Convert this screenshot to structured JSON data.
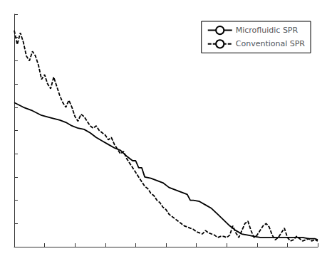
{
  "chart_data": {
    "type": "line",
    "series": [
      {
        "name": "Microfluidic SPR",
        "color": "#000000",
        "line_style": "solid",
        "x": [
          0,
          3,
          6,
          9,
          12,
          15,
          17,
          19,
          21,
          23,
          25,
          27,
          29,
          31,
          33,
          35,
          37,
          39,
          40,
          41,
          42,
          43,
          45,
          47,
          49,
          51,
          53,
          55,
          57,
          58,
          59,
          61,
          63,
          65,
          67,
          69,
          71,
          73,
          75,
          77,
          79,
          81,
          83,
          85,
          87,
          89,
          91,
          93,
          95,
          97,
          99,
          100
        ],
        "values": [
          0.62,
          0.6,
          0.585,
          0.565,
          0.555,
          0.545,
          0.535,
          0.52,
          0.51,
          0.505,
          0.49,
          0.47,
          0.455,
          0.44,
          0.425,
          0.415,
          0.39,
          0.37,
          0.37,
          0.34,
          0.34,
          0.3,
          0.295,
          0.285,
          0.275,
          0.255,
          0.245,
          0.235,
          0.225,
          0.2,
          0.2,
          0.195,
          0.18,
          0.165,
          0.14,
          0.115,
          0.09,
          0.07,
          0.055,
          0.05,
          0.045,
          0.04,
          0.04,
          0.04,
          0.04,
          0.04,
          0.04,
          0.04,
          0.04,
          0.035,
          0.035,
          0.03
        ]
      },
      {
        "name": "Conventional SPR",
        "color": "#000000",
        "line_style": "dashed",
        "x": [
          0,
          1,
          2,
          3,
          4,
          5,
          6,
          7,
          8,
          9,
          10,
          11,
          12,
          13,
          14,
          15,
          16,
          17,
          18,
          19,
          20,
          21,
          22,
          23,
          24,
          25,
          26,
          27,
          28,
          29,
          30,
          31,
          32,
          33,
          34,
          35,
          36,
          37,
          38,
          39,
          40,
          41,
          42,
          43,
          44,
          45,
          46,
          47,
          48,
          49,
          50,
          51,
          52,
          53,
          54,
          55,
          56,
          57,
          58,
          59,
          60,
          61,
          62,
          63,
          64,
          65,
          66,
          67,
          68,
          69,
          70,
          71,
          72,
          73,
          74,
          75,
          76,
          77,
          78,
          79,
          80,
          81,
          82,
          83,
          84,
          85,
          86,
          87,
          88,
          89,
          90,
          91,
          92,
          93,
          94,
          95,
          96,
          97,
          98,
          99,
          100
        ],
        "values": [
          0.93,
          0.87,
          0.92,
          0.88,
          0.82,
          0.8,
          0.84,
          0.82,
          0.78,
          0.72,
          0.74,
          0.7,
          0.68,
          0.73,
          0.69,
          0.65,
          0.62,
          0.6,
          0.63,
          0.6,
          0.56,
          0.54,
          0.57,
          0.56,
          0.54,
          0.52,
          0.51,
          0.52,
          0.5,
          0.49,
          0.48,
          0.46,
          0.47,
          0.44,
          0.42,
          0.4,
          0.41,
          0.38,
          0.36,
          0.34,
          0.32,
          0.3,
          0.28,
          0.26,
          0.25,
          0.23,
          0.22,
          0.2,
          0.19,
          0.17,
          0.16,
          0.14,
          0.13,
          0.12,
          0.11,
          0.1,
          0.09,
          0.085,
          0.08,
          0.075,
          0.065,
          0.06,
          0.055,
          0.07,
          0.06,
          0.055,
          0.05,
          0.04,
          0.045,
          0.045,
          0.04,
          0.05,
          0.09,
          0.06,
          0.04,
          0.07,
          0.1,
          0.11,
          0.07,
          0.04,
          0.05,
          0.07,
          0.09,
          0.1,
          0.085,
          0.05,
          0.03,
          0.04,
          0.06,
          0.08,
          0.04,
          0.025,
          0.03,
          0.045,
          0.035,
          0.025,
          0.03,
          0.035,
          0.025,
          0.03,
          0.025
        ]
      }
    ],
    "xlim": [
      0,
      100
    ],
    "ylim": [
      0,
      1.0
    ],
    "xticks": [
      0,
      10,
      20,
      30,
      40,
      50,
      60,
      70,
      80,
      90,
      100
    ],
    "yticks": [
      0,
      0.1,
      0.2,
      0.3,
      0.4,
      0.5,
      0.6,
      0.7,
      0.8,
      0.9,
      1.0
    ],
    "grid": false,
    "legend": "upper right",
    "tick_labels": false
  }
}
